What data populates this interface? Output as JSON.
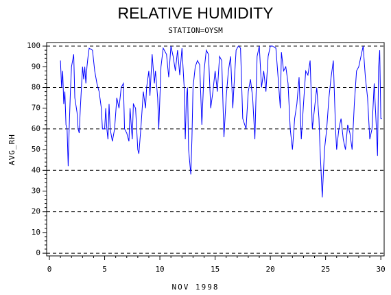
{
  "chart_data": {
    "type": "line",
    "title": "RELATIVE HUMIDITY",
    "subtitle": "STATION=OYSM",
    "x_label": "NOV 1998",
    "y_label": "AVG_RH",
    "xlim": [
      -0.25,
      30.3
    ],
    "ylim": [
      -1.3,
      101.7
    ],
    "xticks": [
      0,
      5,
      10,
      15,
      20,
      25,
      30
    ],
    "yticks": [
      0,
      10,
      20,
      30,
      40,
      50,
      60,
      70,
      80,
      90,
      100
    ],
    "grid": true,
    "x": [
      1.0,
      1.1,
      1.2,
      1.3,
      1.4,
      1.5,
      1.6,
      1.7,
      1.8,
      1.9,
      2.0,
      2.2,
      2.3,
      2.5,
      2.6,
      2.7,
      2.8,
      3.0,
      3.1,
      3.2,
      3.3,
      3.4,
      3.5,
      3.6,
      3.9,
      4.1,
      4.3,
      4.5,
      4.7,
      4.8,
      5.0,
      5.1,
      5.2,
      5.3,
      5.4,
      5.5,
      5.7,
      5.9,
      6.1,
      6.3,
      6.5,
      6.7,
      6.8,
      7.0,
      7.2,
      7.3,
      7.5,
      7.6,
      7.8,
      8.0,
      8.1,
      8.3,
      8.5,
      8.7,
      8.8,
      9.0,
      9.1,
      9.3,
      9.5,
      9.6,
      9.8,
      9.9,
      10.1,
      10.3,
      10.6,
      10.8,
      11.0,
      11.2,
      11.4,
      11.6,
      11.8,
      12.0,
      12.2,
      12.3,
      12.4,
      12.5,
      12.6,
      12.8,
      12.9,
      13.0,
      13.2,
      13.4,
      13.6,
      13.8,
      14.0,
      14.2,
      14.4,
      14.6,
      14.8,
      15.0,
      15.2,
      15.4,
      15.6,
      15.8,
      16.0,
      16.2,
      16.4,
      16.6,
      16.7,
      16.9,
      17.1,
      17.3,
      17.5,
      17.8,
      18.0,
      18.2,
      18.4,
      18.6,
      18.8,
      19.0,
      19.2,
      19.4,
      19.6,
      19.8,
      20.0,
      20.2,
      20.5,
      20.7,
      20.9,
      21.0,
      21.2,
      21.4,
      21.6,
      21.8,
      22.0,
      22.2,
      22.4,
      22.6,
      22.8,
      23.0,
      23.2,
      23.4,
      23.6,
      23.8,
      24.0,
      24.2,
      24.4,
      24.5,
      24.7,
      24.9,
      25.1,
      25.3,
      25.5,
      25.7,
      25.9,
      26.0,
      26.2,
      26.4,
      26.6,
      26.8,
      27.0,
      27.2,
      27.4,
      27.6,
      27.8,
      28.0,
      28.2,
      28.4,
      28.6,
      28.8,
      29.0,
      29.2,
      29.4,
      29.6,
      29.7,
      29.8,
      29.9,
      30.0,
      30.1
    ],
    "series": [
      {
        "color": "#0000ff",
        "values": [
          93,
          80,
          88,
          72,
          78,
          62,
          60,
          42,
          62,
          78,
          90,
          96,
          75,
          68,
          60,
          58,
          70,
          90,
          84,
          90,
          82,
          90,
          95,
          99,
          98,
          88,
          82,
          78,
          70,
          60,
          60,
          70,
          60,
          55,
          72,
          60,
          54,
          60,
          75,
          70,
          80,
          82,
          60,
          58,
          54,
          70,
          55,
          72,
          70,
          50,
          48,
          62,
          78,
          70,
          80,
          88,
          76,
          96,
          82,
          88,
          75,
          60,
          90,
          99,
          96,
          85,
          100,
          95,
          88,
          98,
          86,
          99,
          80,
          55,
          75,
          80,
          50,
          38,
          55,
          80,
          90,
          93,
          91,
          62,
          88,
          98,
          96,
          70,
          78,
          88,
          78,
          95,
          93,
          56,
          75,
          88,
          95,
          70,
          80,
          98,
          100,
          99,
          65,
          60,
          78,
          84,
          75,
          55,
          95,
          100,
          80,
          88,
          78,
          95,
          100,
          100,
          99,
          85,
          70,
          97,
          88,
          90,
          82,
          60,
          50,
          65,
          72,
          85,
          55,
          72,
          88,
          86,
          93,
          60,
          70,
          80,
          65,
          50,
          27,
          50,
          60,
          75,
          85,
          93,
          60,
          50,
          60,
          65,
          55,
          50,
          62,
          58,
          50,
          72,
          88,
          90,
          95,
          100,
          85,
          75,
          55,
          60,
          82,
          60,
          47,
          90,
          98,
          65,
          65
        ]
      }
    ]
  }
}
